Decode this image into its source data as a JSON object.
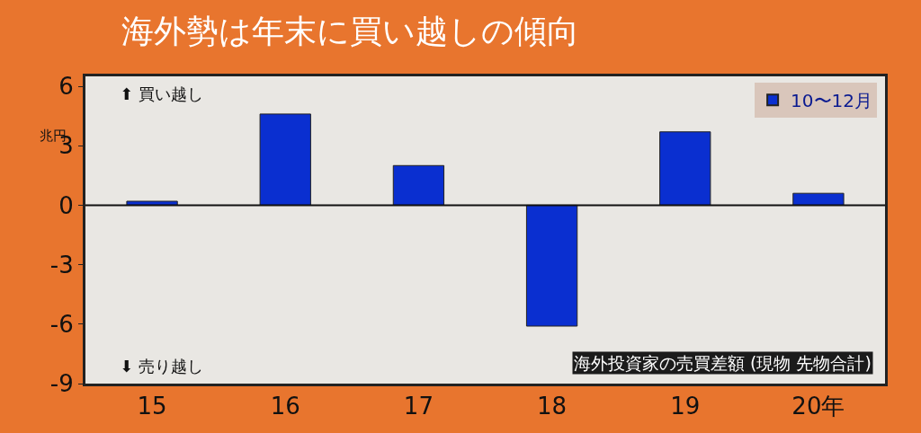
{
  "chart_data": {
    "type": "bar",
    "title": "海外勢は年末に買い越しの傾向",
    "ylabel": "兆円",
    "categories": [
      "15",
      "16",
      "17",
      "18",
      "19",
      "20年"
    ],
    "series": [
      {
        "name": "10〜12月",
        "color": "#0a2fd0",
        "values": [
          0.2,
          4.6,
          2.0,
          -6.1,
          3.7,
          0.6
        ]
      }
    ],
    "ylim": [
      -9,
      6.5
    ],
    "yticks": [
      -9,
      -6,
      -3,
      0,
      3,
      6
    ],
    "grid": false,
    "legend": "top right",
    "ref_lines": [
      {
        "axis": "y",
        "value": 0,
        "color": "#111111"
      }
    ],
    "annotations": [
      "⬆ 買い越し",
      "⬇ 売り越し",
      "海外投資家の売買差額 (現物 先物合計)"
    ]
  }
}
